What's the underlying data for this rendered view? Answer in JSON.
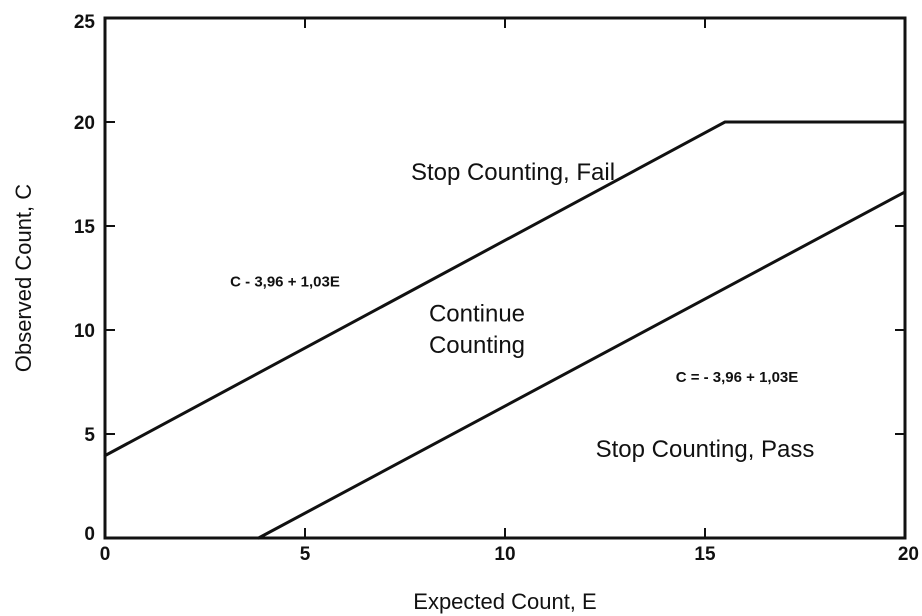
{
  "chart_data": {
    "type": "line",
    "title": "",
    "xlabel": "Expected Count, E",
    "ylabel": "Observed Count, C",
    "xlim": [
      0,
      20
    ],
    "ylim": [
      0,
      25
    ],
    "xticks": [
      0,
      5,
      10,
      15,
      20
    ],
    "yticks": [
      0,
      5,
      10,
      15,
      20,
      25
    ],
    "x_tick_labels": [
      "0",
      "5",
      "10",
      "15",
      "20"
    ],
    "y_tick_labels": [
      "0",
      "5",
      "10",
      "15",
      "20",
      "25"
    ],
    "grid": false,
    "legend": "none",
    "line_color": "#111111",
    "series": [
      {
        "x": [
          0,
          15.5,
          20
        ],
        "y": [
          3.96,
          20,
          20
        ]
      },
      {
        "x": [
          3.84,
          20
        ],
        "y": [
          0,
          16.64
        ]
      }
    ],
    "annotations": [
      {
        "text": "Stop Counting, Fail",
        "x": 10.2,
        "y": 17.2
      },
      {
        "text": "C - 3,96 + 1,03E",
        "x": 4.5,
        "y": 12.1
      },
      {
        "text": "Continue",
        "x": 9.3,
        "y": 10.4
      },
      {
        "text": "Counting",
        "x": 9.3,
        "y": 8.9
      },
      {
        "text": "C = - 3,96 + 1,03E",
        "x": 15.8,
        "y": 7.5
      },
      {
        "text": "Stop Counting, Pass",
        "x": 15.0,
        "y": 3.9
      }
    ]
  }
}
